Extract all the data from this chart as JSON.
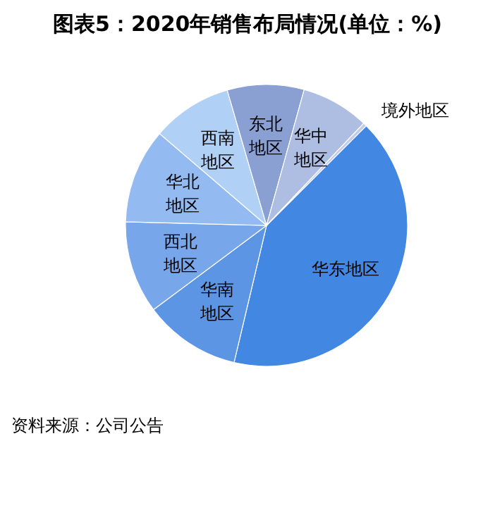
{
  "chart_data": {
    "type": "pie",
    "title": "图表5：2020年销售布局情况(单位：%)",
    "categories": [
      "华东地区",
      "华南地区",
      "西北地区",
      "华北地区",
      "西南地区",
      "东北地区",
      "华中地区",
      "境外地区"
    ],
    "values": [
      41.2,
      11.1,
      10.6,
      10.9,
      9.2,
      8.8,
      7.8,
      0.4
    ],
    "colors": [
      "#4288e2",
      "#5c95e4",
      "#77a6eb",
      "#94bbf1",
      "#b1d0f6",
      "#8a9fd2",
      "#aebde2",
      "#c3cbe8"
    ],
    "annotations": [
      "资料来源：公司公告"
    ],
    "legend": false
  }
}
